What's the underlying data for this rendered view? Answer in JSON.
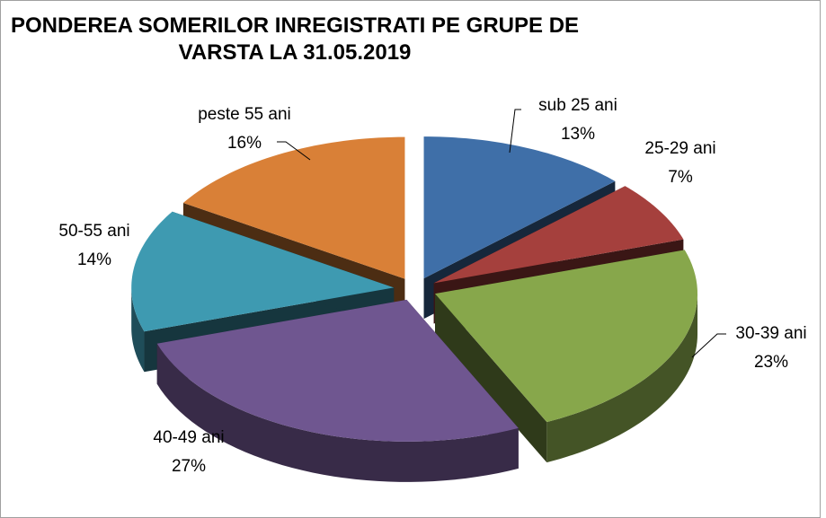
{
  "chart_data": {
    "type": "pie",
    "title": "PONDEREA SOMERILOR INREGISTRATI PE GRUPE DE VARSTA LA 31.05.2019",
    "categories": [
      "sub 25 ani",
      "25-29 ani",
      "30-39 ani",
      "40-49 ani",
      "50-55 ani",
      "peste 55 ani"
    ],
    "values": [
      13,
      7,
      23,
      27,
      14,
      16
    ],
    "value_labels": [
      "13%",
      "7%",
      "23%",
      "27%",
      "14%",
      "16%"
    ],
    "colors": [
      "#3f6fa8",
      "#a5403d",
      "#87a74b",
      "#6f5690",
      "#3e9ab1",
      "#d98037"
    ]
  }
}
